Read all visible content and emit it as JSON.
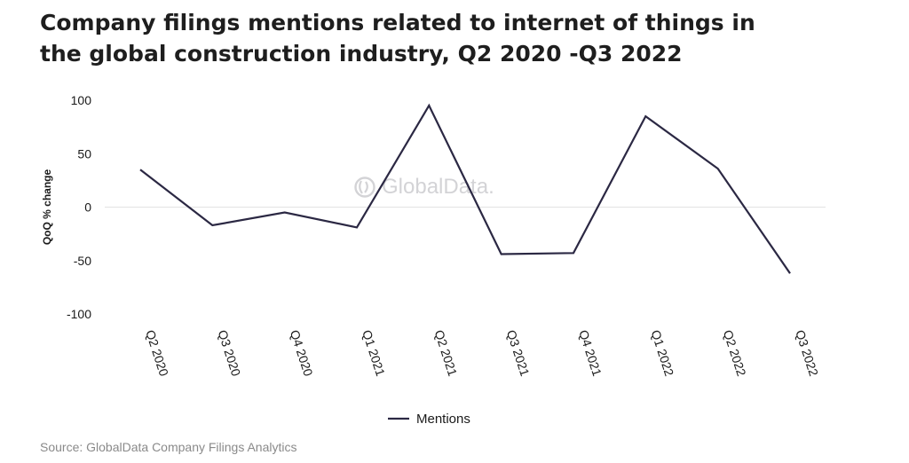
{
  "title": {
    "line1": "Company filings mentions related to internet of things in",
    "line2": "the global construction industry, Q2 2020 -Q3 2022"
  },
  "watermark": {
    "text": "GlobalData.",
    "icon": "globaldata-logo-icon"
  },
  "source": "Source: GlobalData Company Filings Analytics",
  "colors": {
    "line": "#2b2843",
    "zero_line": "#e3e3e3",
    "text": "#1a1a1a",
    "source": "#8a8a8a"
  },
  "chart_data": {
    "type": "line",
    "title": "Company filings mentions related to internet of things in the global construction industry, Q2 2020 -Q3 2022",
    "xlabel": "",
    "ylabel": "QoQ % change",
    "ylim": [
      -100,
      100
    ],
    "yticks": [
      100,
      50,
      0,
      -50,
      -100
    ],
    "categories": [
      "Q2 2020",
      "Q3 2020",
      "Q4 2020",
      "Q1 2021",
      "Q2 2021",
      "Q3 2021",
      "Q4 2021",
      "Q1 2022",
      "Q2 2022",
      "Q3 2022"
    ],
    "series": [
      {
        "name": "Mentions",
        "values": [
          35,
          -17,
          -5,
          -19,
          95,
          -44,
          -43,
          85,
          36,
          -62
        ]
      }
    ],
    "grid": false,
    "legend": "bottom-center"
  }
}
